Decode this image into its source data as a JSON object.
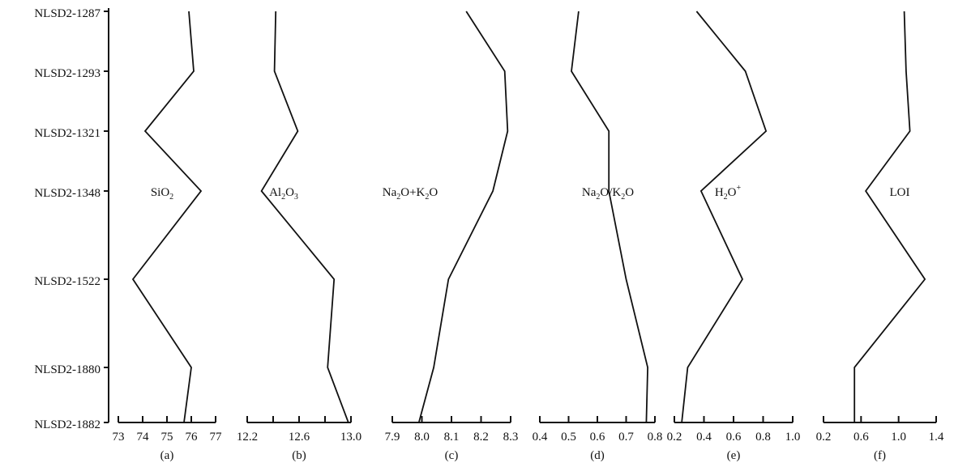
{
  "samples": [
    "NLSD2-1287",
    "NLSD2-1293",
    "NLSD2-1321",
    "NLSD2-1348",
    "NLSD2-1522",
    "NLSD2-1880",
    "NLSD2-1882"
  ],
  "chart_data": [
    {
      "type": "line",
      "panel_label": "(a)",
      "series_label": {
        "main": "SiO",
        "sub": "2",
        "sup": ""
      },
      "series": [
        {
          "name": "SiO2",
          "values": [
            75.9,
            76.1,
            74.1,
            76.4,
            73.6,
            76.0,
            75.7
          ]
        }
      ],
      "xlim": [
        73,
        77
      ],
      "xticks": [
        73,
        74,
        75,
        76,
        77
      ],
      "xtick_labels": [
        "73",
        "74",
        "75",
        "76",
        "77"
      ],
      "show_vertical_axis": true
    },
    {
      "type": "line",
      "panel_label": "(b)",
      "series_label": {
        "main": "Al",
        "sub": "2",
        "mid": "O",
        "sub2": "3"
      },
      "series": [
        {
          "name": "Al2O3",
          "values": [
            12.42,
            12.41,
            12.59,
            12.31,
            12.87,
            12.82,
            12.98
          ]
        }
      ],
      "xlim": [
        12.2,
        13.0
      ],
      "xticks": [
        12.2,
        12.4,
        12.6,
        12.8,
        13.0
      ],
      "xtick_labels": [
        "12.2",
        "",
        "12.6",
        "",
        "13.0"
      ],
      "show_vertical_axis": false
    },
    {
      "type": "line",
      "panel_label": "(c)",
      "series_label": {
        "main": "Na",
        "sub": "2",
        "mid": "O+K",
        "sub2": "2",
        "end": "O"
      },
      "series": [
        {
          "name": "Na2O+K2O",
          "values": [
            8.15,
            8.28,
            8.29,
            8.24,
            8.09,
            8.04,
            7.99
          ]
        }
      ],
      "xlim": [
        7.9,
        8.3
      ],
      "xticks": [
        7.9,
        8.0,
        8.1,
        8.2,
        8.3
      ],
      "xtick_labels": [
        "7.9",
        "8.0",
        "8.1",
        "8.2",
        "8.3"
      ],
      "show_vertical_axis": false
    },
    {
      "type": "line",
      "panel_label": "(d)",
      "series_label": {
        "main": "Na",
        "sub": "2",
        "mid": "O/K",
        "sub2": "2",
        "end": "O"
      },
      "series": [
        {
          "name": "Na2O/K2O",
          "values": [
            0.535,
            0.51,
            0.64,
            0.64,
            0.7,
            0.775,
            0.77
          ]
        }
      ],
      "xlim": [
        0.4,
        0.8
      ],
      "xticks": [
        0.4,
        0.5,
        0.6,
        0.7,
        0.8
      ],
      "xtick_labels": [
        "0.4",
        "0.5",
        "0.6",
        "0.7",
        "0.8"
      ],
      "show_vertical_axis": false
    },
    {
      "type": "line",
      "panel_label": "(e)",
      "series_label": {
        "main": "H",
        "sub": "2",
        "mid": "O",
        "sup": "+"
      },
      "series": [
        {
          "name": "H2O+",
          "values": [
            0.35,
            0.68,
            0.82,
            0.38,
            0.66,
            0.29,
            0.25
          ]
        }
      ],
      "xlim": [
        0.2,
        1.0
      ],
      "xticks": [
        0.2,
        0.4,
        0.6,
        0.8,
        1.0
      ],
      "xtick_labels": [
        "0.2",
        "0.4",
        "0.6",
        "0.8",
        "1.0"
      ],
      "show_vertical_axis": false
    },
    {
      "type": "line",
      "panel_label": "(f)",
      "series_label": {
        "main": "LOI"
      },
      "series": [
        {
          "name": "LOI",
          "values": [
            1.06,
            1.08,
            1.12,
            0.65,
            1.28,
            0.53,
            0.53
          ]
        }
      ],
      "xlim": [
        0.2,
        1.4
      ],
      "xticks": [
        0.2,
        0.6,
        1.0,
        1.4
      ],
      "xtick_labels": [
        "0.2",
        "0.6",
        "1.0",
        "1.4"
      ],
      "show_vertical_axis": false
    }
  ]
}
